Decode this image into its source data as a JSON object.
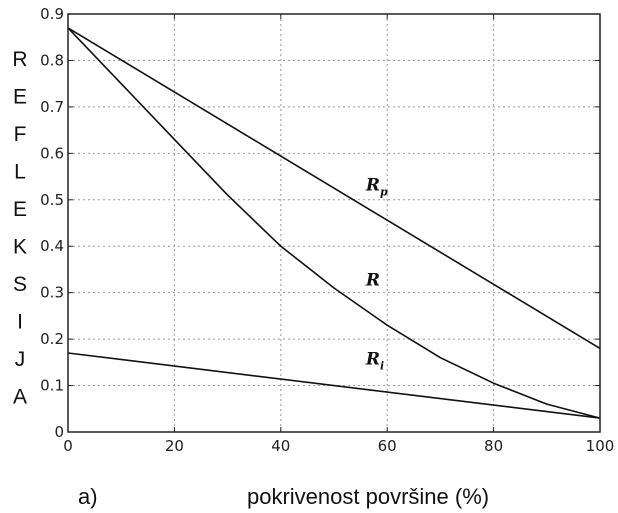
{
  "chart_data": {
    "type": "line",
    "panel_label": "a)",
    "xlabel": "pokrivenost površine (%)",
    "ylabel": "REFLEKSIJA",
    "xlim": [
      0,
      100
    ],
    "ylim": [
      0,
      0.9
    ],
    "xticks": [
      0,
      20,
      40,
      60,
      80,
      100
    ],
    "yticks": [
      0,
      0.1,
      0.2,
      0.3,
      0.4,
      0.5,
      0.6,
      0.7,
      0.8,
      0.9
    ],
    "xtick_labels": [
      "0",
      "20",
      "40",
      "60",
      "80",
      "100"
    ],
    "ytick_labels": [
      "0",
      "0.1",
      "0.2",
      "0.3",
      "0.4",
      "0.5",
      "0.6",
      "0.7",
      "0.8",
      "0.9"
    ],
    "grid": true,
    "series": [
      {
        "name": "R",
        "sub": "p",
        "x": [
          0,
          100
        ],
        "y": [
          0.87,
          0.18
        ]
      },
      {
        "name": "R",
        "sub": "",
        "x": [
          0,
          10,
          20,
          30,
          40,
          50,
          60,
          70,
          80,
          90,
          100
        ],
        "y": [
          0.87,
          0.75,
          0.63,
          0.51,
          0.4,
          0.31,
          0.23,
          0.16,
          0.105,
          0.06,
          0.03
        ]
      },
      {
        "name": "R",
        "sub": "i",
        "x": [
          0,
          100
        ],
        "y": [
          0.17,
          0.03
        ]
      }
    ],
    "labels": [
      {
        "text": "R",
        "sub": "p",
        "x": 56,
        "y": 0.52
      },
      {
        "text": "R",
        "sub": "",
        "x": 56,
        "y": 0.315
      },
      {
        "text": "R",
        "sub": "i",
        "x": 56,
        "y": 0.145
      }
    ]
  }
}
